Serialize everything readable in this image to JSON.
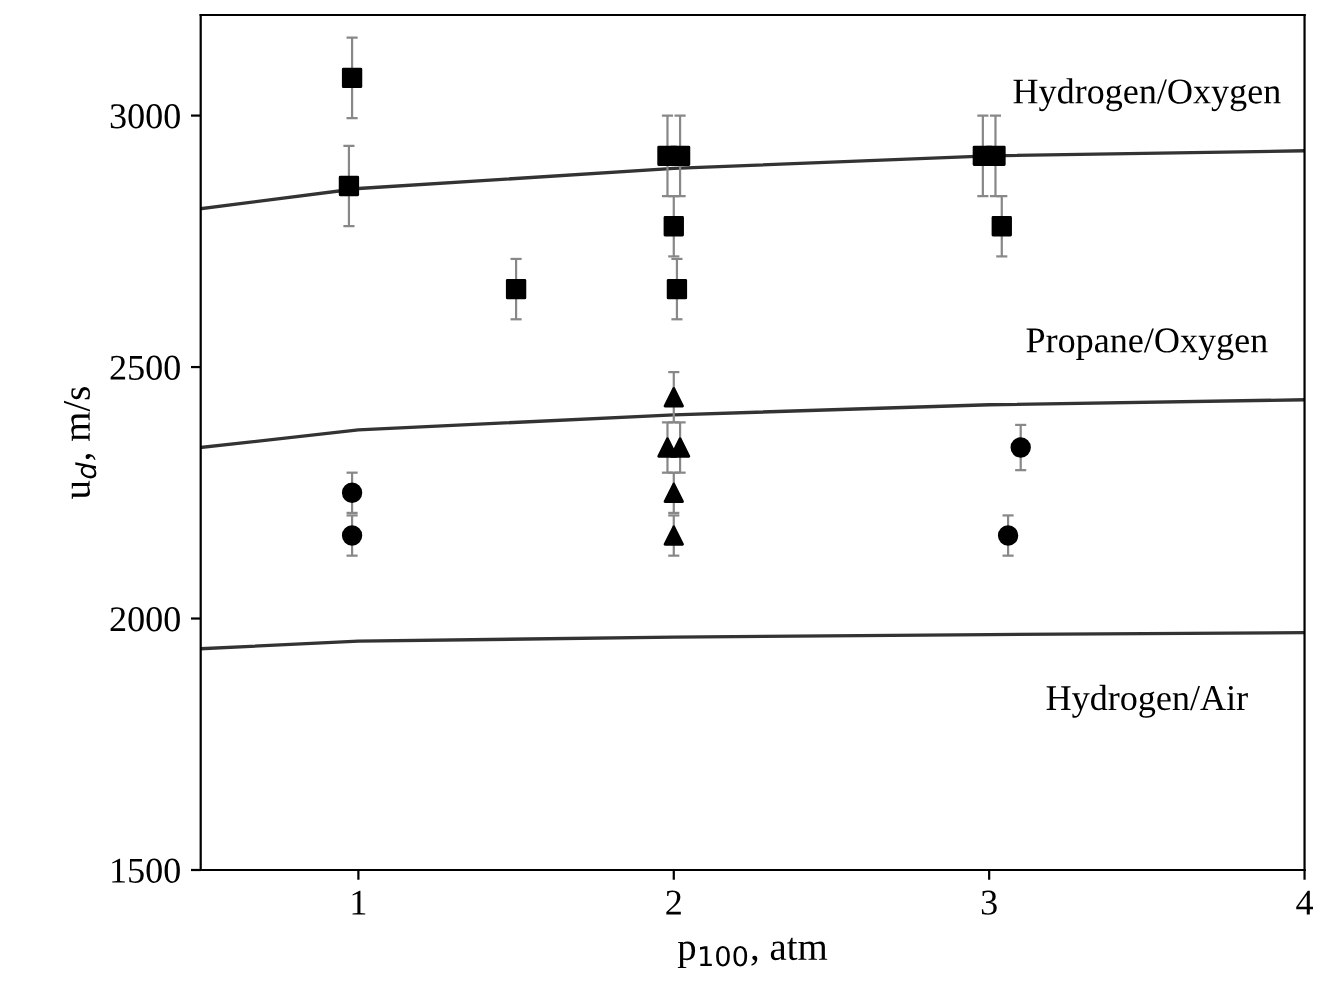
{
  "chart_data": {
    "type": "scatter",
    "xlabel": "p$_{100}$, atm",
    "ylabel": "u$_{d}$, m/s",
    "xlim": [
      0.5,
      4
    ],
    "xticks": [
      1,
      2,
      3,
      4
    ],
    "ylim": [
      1500,
      3200
    ],
    "yticks": [
      1500,
      2000,
      2500,
      3000
    ],
    "grid": false,
    "legend": false,
    "series": [
      {
        "type": "line",
        "name": "Hydrogen/Oxygen",
        "color": "#333333",
        "marker": "none",
        "line_style": "solid",
        "x": [
          0.5,
          1,
          2,
          3,
          4
        ],
        "values": [
          2815,
          2855,
          2895,
          2920,
          2930
        ]
      },
      {
        "type": "line",
        "name": "Propane/Oxygen",
        "color": "#333333",
        "marker": "none",
        "line_style": "solid",
        "x": [
          0.5,
          1,
          2,
          3,
          4
        ],
        "values": [
          2340,
          2375,
          2405,
          2425,
          2435
        ]
      },
      {
        "type": "line",
        "name": "Hydrogen/Air",
        "color": "#333333",
        "marker": "none",
        "line_style": "solid",
        "x": [
          0.5,
          1,
          2,
          3,
          4
        ],
        "values": [
          1940,
          1955,
          1963,
          1968,
          1972
        ]
      },
      {
        "color": "#000000",
        "marker": "square",
        "x": [
          0.98,
          0.97,
          1.5,
          1.98,
          2.02,
          2.0,
          2.01,
          2.98,
          3.02,
          3.04
        ],
        "values": [
          3075,
          2860,
          2655,
          2920,
          2920,
          2780,
          2655,
          2920,
          2920,
          2780
        ],
        "errors": [
          80,
          80,
          60,
          80,
          80,
          60,
          60,
          80,
          80,
          60
        ]
      },
      {
        "color": "#000000",
        "marker": "triangle",
        "x": [
          2.0,
          1.98,
          2.02,
          2.0,
          2.0
        ],
        "values": [
          2440,
          2340,
          2340,
          2250,
          2165
        ],
        "errors": [
          50,
          50,
          50,
          40,
          40
        ]
      },
      {
        "color": "#000000",
        "marker": "circle",
        "x": [
          0.98,
          0.98,
          3.06,
          3.1
        ],
        "values": [
          2250,
          2165,
          2165,
          2340
        ],
        "errors": [
          40,
          40,
          40,
          45
        ]
      }
    ]
  }
}
